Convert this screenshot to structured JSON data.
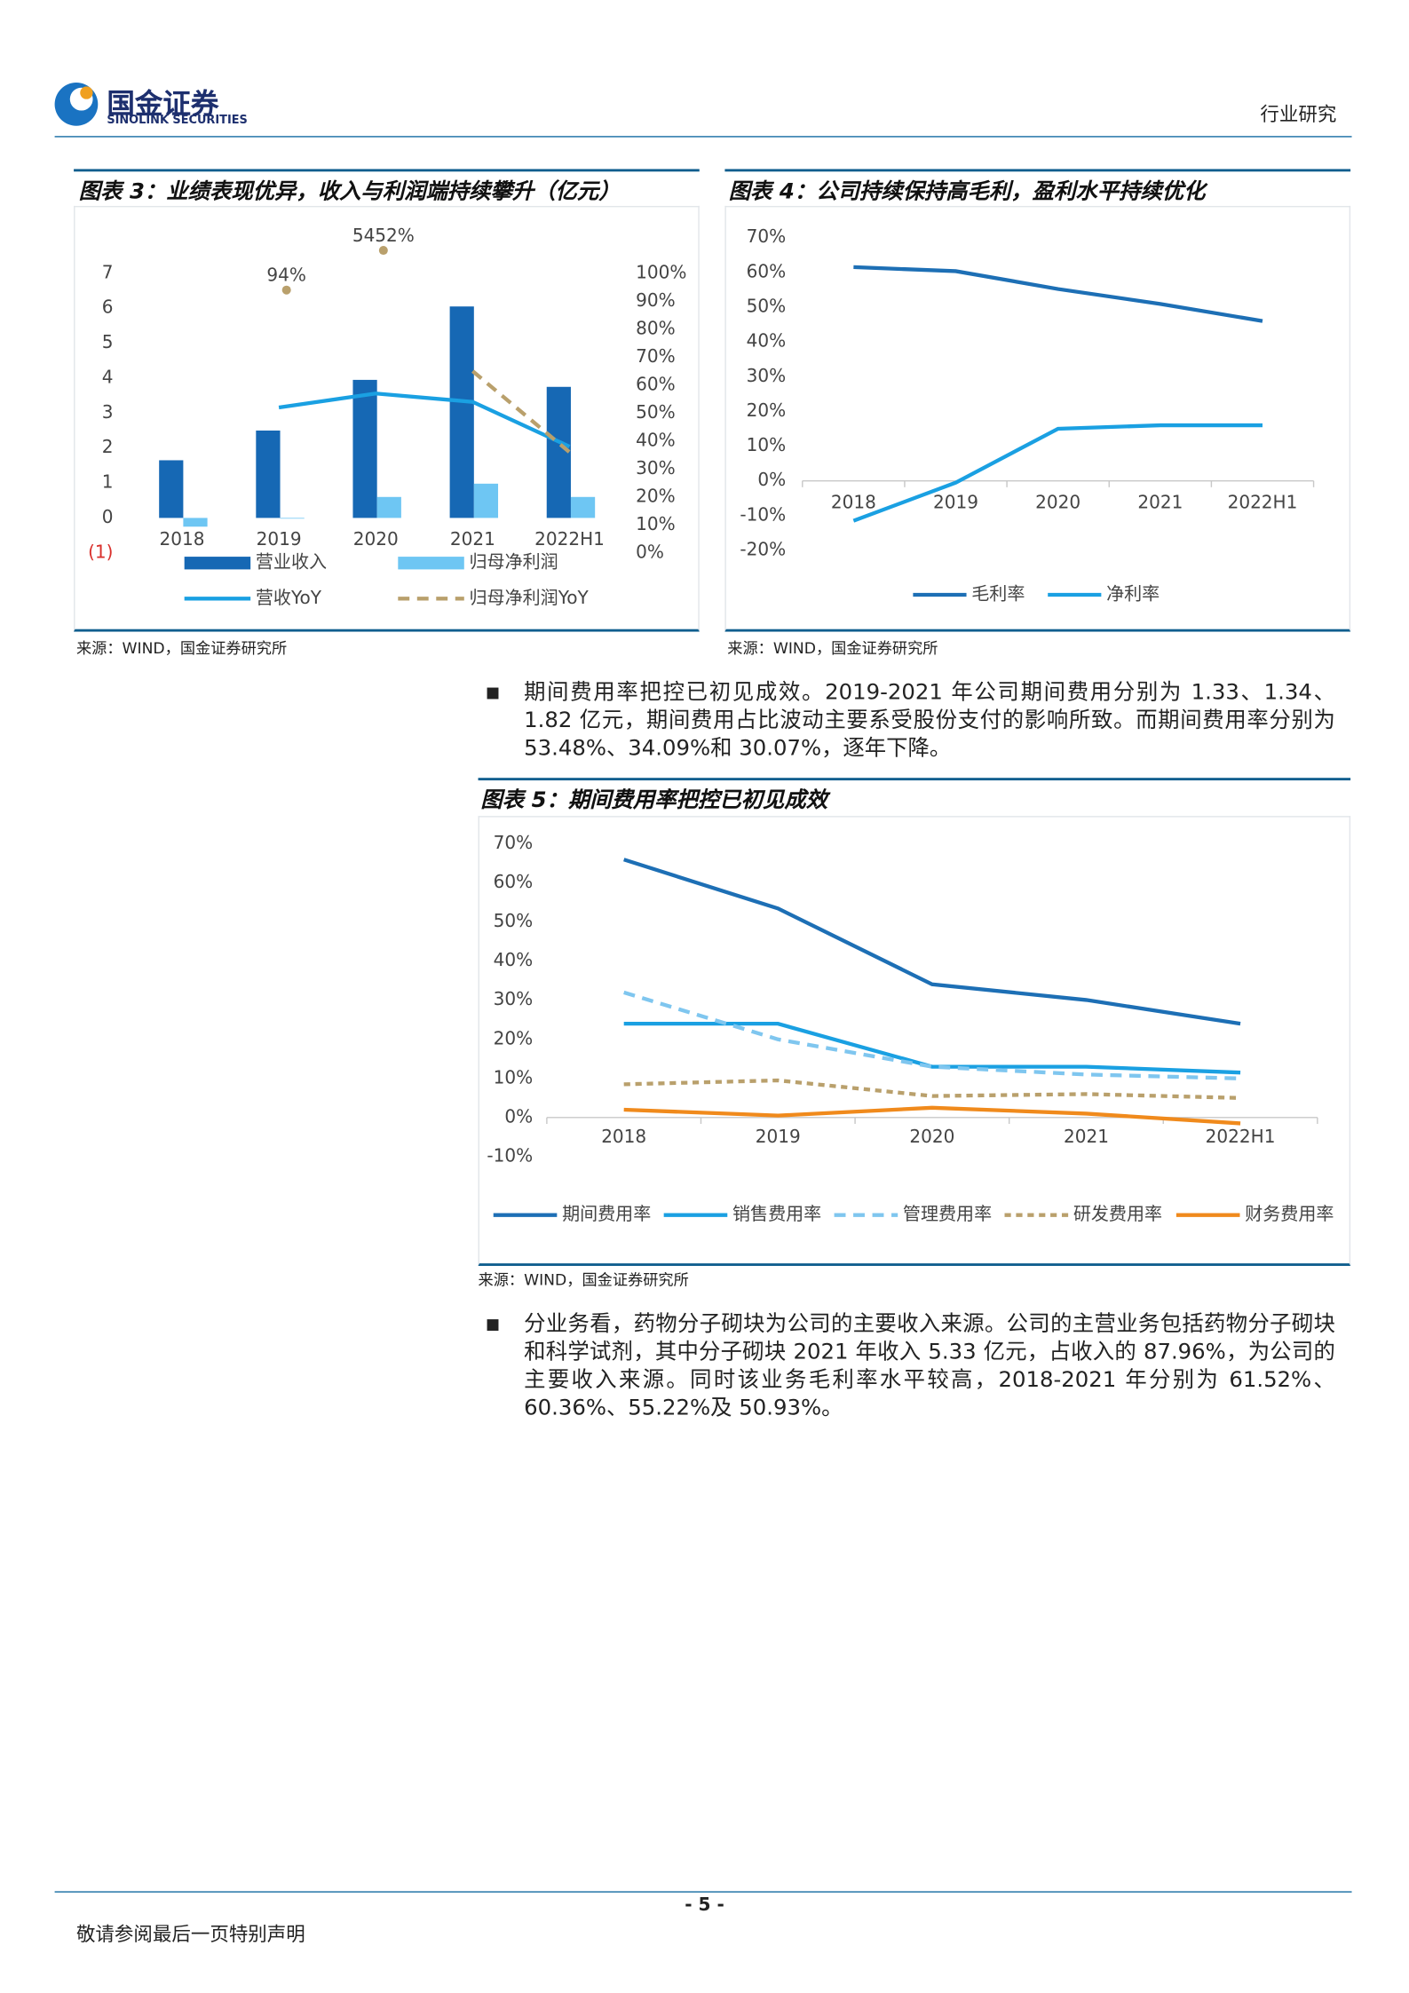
{
  "header": {
    "logo_cn": "国金证券",
    "logo_en": "SINOLINK SECURITIES",
    "section": "行业研究"
  },
  "paragraphs": [
    "期间费用率把控已初见成效。2019-2021 年公司期间费用分别为 1.33、1.34、1.82 亿元，期间费用占比波动主要系受股份支付的影响所致。而期间费用率分别为 53.48%、34.09%和 30.07%，逐年下降。",
    "分业务看，药物分子砌块为公司的主要收入来源。公司的主营业务包括药物分子砌块和科学试剂，其中分子砌块 2021 年收入 5.33 亿元，占收入的 87.96%，为公司的主要收入来源。同时该业务毛利率水平较高，2018-2021 年分别为 61.52%、60.36%、55.22%及 50.93%。"
  ],
  "footer": {
    "page": "- 5 -",
    "disclaimer": "敬请参阅最后一页特别声明"
  },
  "chart_data": [
    {
      "type": "combo",
      "title": "图表 3：业绩表现优异，收入与利润端持续攀升（亿元）",
      "source": "来源：WIND，国金证券研究所",
      "categories": [
        "2018",
        "2019",
        "2020",
        "2021",
        "2022H1"
      ],
      "ylim": [
        -1,
        7
      ],
      "yticks": [
        {
          "value": -1,
          "label": "(1)",
          "color": "#d9302c"
        },
        0,
        1,
        2,
        3,
        4,
        5,
        6,
        7
      ],
      "y2lim": [
        0,
        100
      ],
      "y2ticks": [
        {
          "value": 0,
          "label": "0%"
        },
        {
          "value": 10,
          "label": "10%"
        },
        {
          "value": 20,
          "label": "20%"
        },
        {
          "value": 30,
          "label": "30%"
        },
        {
          "value": 40,
          "label": "40%"
        },
        {
          "value": 50,
          "label": "50%"
        },
        {
          "value": 60,
          "label": "60%"
        },
        {
          "value": 70,
          "label": "70%"
        },
        {
          "value": 80,
          "label": "80%"
        },
        {
          "value": 90,
          "label": "90%"
        },
        {
          "value": 100,
          "label": "100%"
        }
      ],
      "grid": false,
      "series": [
        {
          "name": "营业收入",
          "type": "bar",
          "color": "#1668b4",
          "values": [
            1.65,
            2.5,
            3.95,
            6.05,
            3.75
          ]
        },
        {
          "name": "归母净利润",
          "type": "bar",
          "color": "#6ec6f3",
          "values": [
            -0.25,
            -0.02,
            0.6,
            0.98,
            0.6
          ]
        },
        {
          "name": "营收YoY",
          "type": "line",
          "axis": "y2",
          "color": "#1aa0e2",
          "line_style": "solid",
          "values": [
            null,
            52,
            57,
            54,
            38
          ]
        },
        {
          "name": "归母净利润YoY",
          "type": "line",
          "axis": "y2",
          "color": "#b9a06c",
          "line_style": "dashed",
          "values": [
            null,
            94,
            5452,
            65,
            36
          ],
          "value_labels": [
            null,
            "94%",
            "5452%",
            null,
            null
          ]
        }
      ]
    },
    {
      "type": "line",
      "title": "图表 4：公司持续保持高毛利，盈利水平持续优化",
      "source": "来源：WIND，国金证券研究所",
      "categories": [
        "2018",
        "2019",
        "2020",
        "2021",
        "2022H1"
      ],
      "ylim": [
        -20,
        70
      ],
      "yticks": [
        {
          "value": -20,
          "label": "-20%"
        },
        {
          "value": -10,
          "label": "-10%"
        },
        {
          "value": 0,
          "label": "0%"
        },
        {
          "value": 10,
          "label": "10%"
        },
        {
          "value": 20,
          "label": "20%"
        },
        {
          "value": 30,
          "label": "30%"
        },
        {
          "value": 40,
          "label": "40%"
        },
        {
          "value": 50,
          "label": "50%"
        },
        {
          "value": 60,
          "label": "60%"
        },
        {
          "value": 70,
          "label": "70%"
        }
      ],
      "grid": false,
      "series": [
        {
          "name": "毛利率",
          "color": "#1d6fb5",
          "line_style": "solid",
          "values": [
            61.52,
            60.36,
            55.22,
            50.93,
            46
          ]
        },
        {
          "name": "净利率",
          "color": "#1aa0e2",
          "line_style": "solid",
          "values": [
            -11.5,
            -0.5,
            15,
            16,
            16
          ]
        }
      ]
    },
    {
      "type": "line",
      "title": "图表 5：期间费用率把控已初见成效",
      "source": "来源：WIND，国金证券研究所",
      "categories": [
        "2018",
        "2019",
        "2020",
        "2021",
        "2022H1"
      ],
      "ylim": [
        -10,
        70
      ],
      "yticks": [
        {
          "value": -10,
          "label": "-10%"
        },
        {
          "value": 0,
          "label": "0%"
        },
        {
          "value": 10,
          "label": "10%"
        },
        {
          "value": 20,
          "label": "20%"
        },
        {
          "value": 30,
          "label": "30%"
        },
        {
          "value": 40,
          "label": "40%"
        },
        {
          "value": 50,
          "label": "50%"
        },
        {
          "value": 60,
          "label": "60%"
        },
        {
          "value": 70,
          "label": "70%"
        }
      ],
      "grid": false,
      "series": [
        {
          "name": "期间费用率",
          "color": "#1d6fb5",
          "line_style": "solid",
          "values": [
            66,
            53.48,
            34.09,
            30.07,
            24
          ]
        },
        {
          "name": "销售费用率",
          "color": "#1aa0e2",
          "line_style": "solid",
          "values": [
            24,
            24,
            13,
            13,
            11.5
          ]
        },
        {
          "name": "管理费用率",
          "color": "#7fc6ef",
          "line_style": "dashed",
          "values": [
            32,
            20,
            13,
            11,
            10
          ]
        },
        {
          "name": "研发费用率",
          "color": "#b9a06c",
          "line_style": "dotted",
          "values": [
            8.5,
            9.5,
            5.5,
            6,
            5
          ]
        },
        {
          "name": "财务费用率",
          "color": "#f08a1c",
          "line_style": "solid",
          "values": [
            2,
            0.5,
            2.5,
            1,
            -1.5
          ]
        }
      ]
    }
  ]
}
